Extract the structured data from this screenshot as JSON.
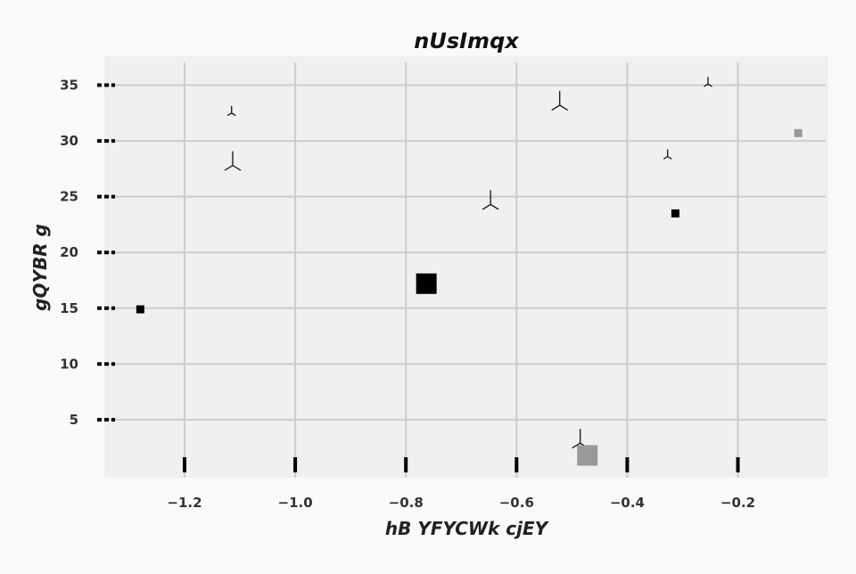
{
  "chart_data": {
    "type": "scatter",
    "title": "nUsImqx",
    "xlabel": "hB YFYCWk cjEY",
    "ylabel": "gQYBR g",
    "xlim": [
      -1.345,
      -0.0365
    ],
    "ylim": [
      -0.2,
      37.6
    ],
    "xticks": [
      -1.2,
      -1.0,
      -0.8,
      -0.6,
      -0.4,
      -0.2
    ],
    "xtick_labels": [
      "−1.2",
      "−1.0",
      "−0.8",
      "−0.6",
      "−0.4",
      "−0.2"
    ],
    "yticks": [
      5,
      10,
      15,
      20,
      25,
      30,
      35
    ],
    "ytick_labels": [
      "5",
      "10",
      "15",
      "20",
      "25",
      "30",
      "35"
    ],
    "grid": true,
    "series": [
      {
        "marker": "tri_down",
        "color": "#111111",
        "points": [
          {
            "x": -1.115,
            "y": 32.5,
            "size": "small"
          },
          {
            "x": -1.113,
            "y": 27.8,
            "size": "large"
          },
          {
            "x": -0.647,
            "y": 24.3,
            "size": "large"
          },
          {
            "x": -0.522,
            "y": 33.2,
            "size": "large"
          },
          {
            "x": -0.327,
            "y": 28.6,
            "size": "small"
          },
          {
            "x": -0.254,
            "y": 35.1,
            "size": "small"
          },
          {
            "x": -0.485,
            "y": 2.9,
            "size": "large"
          }
        ]
      },
      {
        "marker": "square",
        "points": [
          {
            "x": -1.28,
            "y": 14.9,
            "size": "small",
            "color": "#000000"
          },
          {
            "x": -0.763,
            "y": 17.2,
            "size": "large",
            "color": "#000000"
          },
          {
            "x": -0.313,
            "y": 23.5,
            "size": "small",
            "color": "#000000"
          },
          {
            "x": -0.091,
            "y": 30.7,
            "size": "small",
            "color": "#999999"
          },
          {
            "x": -0.472,
            "y": 1.8,
            "size": "large",
            "color": "#999999"
          }
        ]
      }
    ]
  }
}
